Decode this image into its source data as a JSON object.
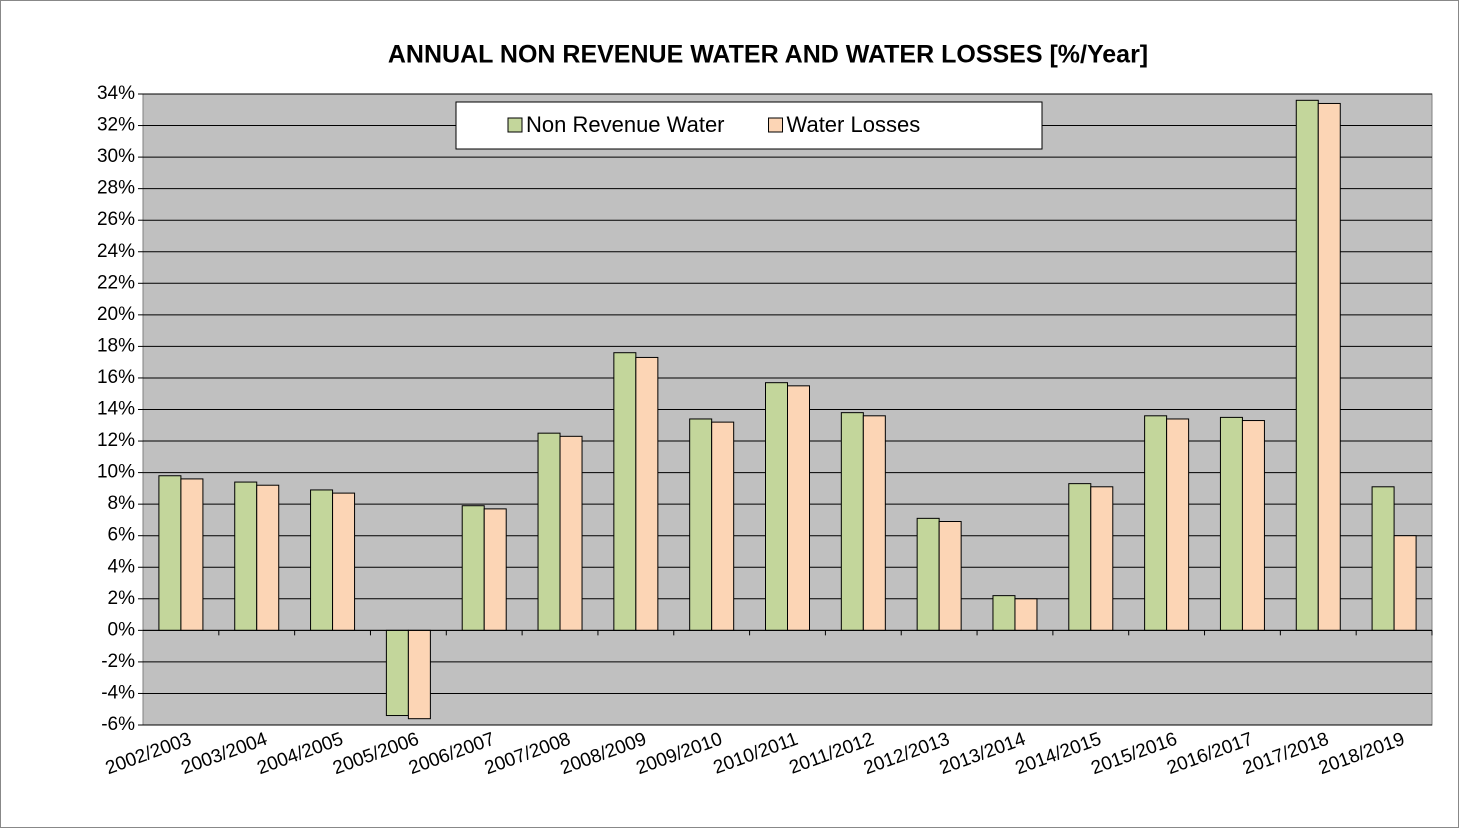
{
  "chart_data": {
    "type": "bar",
    "title": "ANNUAL NON REVENUE WATER AND WATER LOSSES [%/Year]",
    "categories": [
      "2002/2003",
      "2003/2004",
      "2004/2005",
      "2005/2006",
      "2006/2007",
      "2007/2008",
      "2008/2009",
      "2009/2010",
      "2010/2011",
      "2011/2012",
      "2012/2013",
      "2013/2014",
      "2014/2015",
      "2015/2016",
      "2016/2017",
      "2017/2018",
      "2018/2019"
    ],
    "series": [
      {
        "name": "Non Revenue Water",
        "color": "#c3d69b",
        "values": [
          9.8,
          9.4,
          8.9,
          -5.4,
          7.9,
          12.5,
          17.6,
          13.4,
          15.7,
          13.8,
          7.1,
          2.2,
          9.3,
          13.6,
          13.5,
          33.6,
          9.1
        ]
      },
      {
        "name": "Water Losses",
        "color": "#fcd5b5",
        "values": [
          9.6,
          9.2,
          8.7,
          -5.6,
          7.7,
          12.3,
          17.3,
          13.2,
          15.5,
          13.6,
          6.9,
          2.0,
          9.1,
          13.4,
          13.3,
          33.4,
          6.0
        ]
      }
    ],
    "ylim": [
      -6,
      34
    ],
    "yticks": [
      {
        "value": -6,
        "label": "-6%"
      },
      {
        "value": -4,
        "label": "-4%"
      },
      {
        "value": -2,
        "label": "-2%"
      },
      {
        "value": 0,
        "label": "0%"
      },
      {
        "value": 2,
        "label": "2%"
      },
      {
        "value": 4,
        "label": "4%"
      },
      {
        "value": 6,
        "label": "6%"
      },
      {
        "value": 8,
        "label": "8%"
      },
      {
        "value": 10,
        "label": "10%"
      },
      {
        "value": 12,
        "label": "12%"
      },
      {
        "value": 14,
        "label": "14%"
      },
      {
        "value": 16,
        "label": "16%"
      },
      {
        "value": 18,
        "label": "18%"
      },
      {
        "value": 20,
        "label": "20%"
      },
      {
        "value": 22,
        "label": "22%"
      },
      {
        "value": 24,
        "label": "24%"
      },
      {
        "value": 26,
        "label": "26%"
      },
      {
        "value": 28,
        "label": "28%"
      },
      {
        "value": 30,
        "label": "30%"
      },
      {
        "value": 32,
        "label": "32%"
      },
      {
        "value": 34,
        "label": "34%"
      }
    ],
    "grid": true,
    "legend": "top"
  }
}
